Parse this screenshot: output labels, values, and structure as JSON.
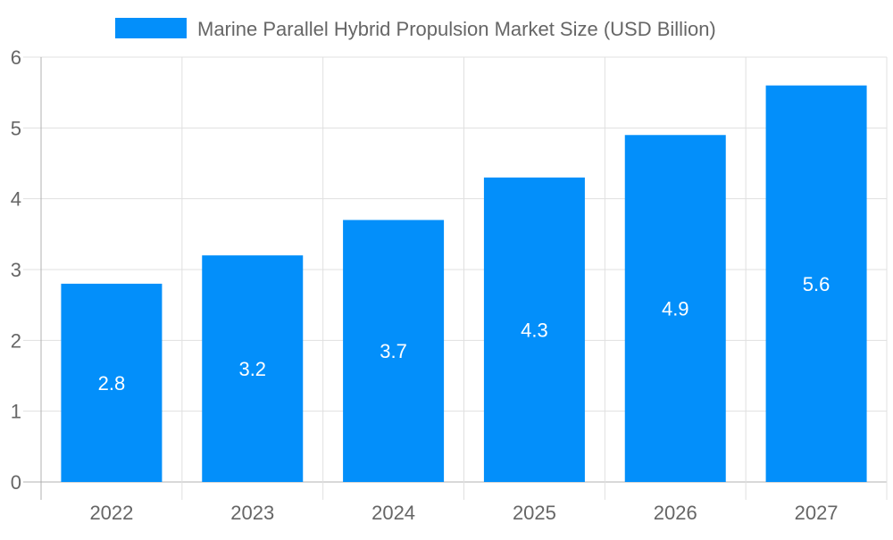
{
  "chart_data": {
    "type": "bar",
    "title": "",
    "xlabel": "",
    "ylabel": "",
    "categories": [
      "2022",
      "2023",
      "2024",
      "2025",
      "2026",
      "2027"
    ],
    "series": [
      {
        "name": "Marine Parallel Hybrid Propulsion Market Size (USD Billion)",
        "values": [
          2.8,
          3.2,
          3.7,
          4.3,
          4.9,
          5.6
        ],
        "color": "#038ffa"
      }
    ],
    "data_labels": [
      "2.8",
      "3.2",
      "3.7",
      "4.3",
      "4.9",
      "5.6"
    ],
    "ylim": [
      0,
      6
    ],
    "yticks": [
      "0",
      "1",
      "2",
      "3",
      "4",
      "5",
      "6"
    ],
    "grid": true,
    "legend_position": "top"
  }
}
